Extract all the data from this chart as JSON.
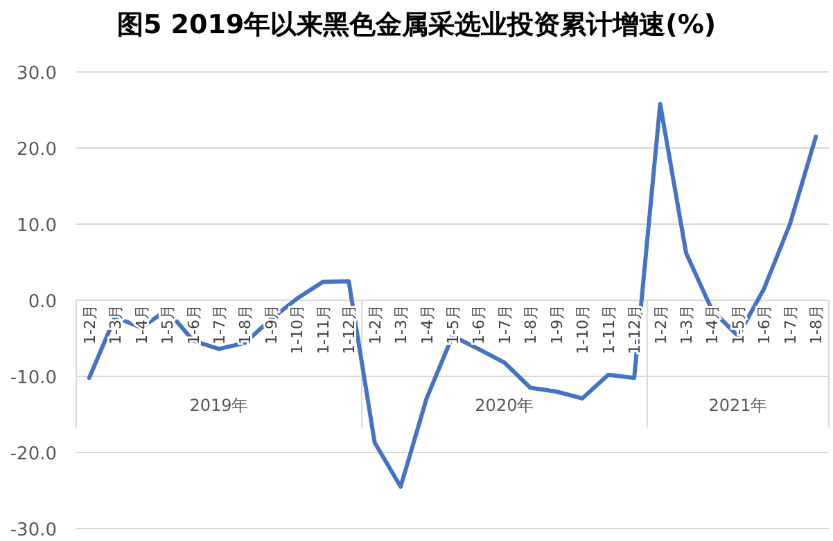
{
  "chart_data": {
    "type": "line",
    "title": "图5 2019年以来黑色金属采选业投资累计增速(%)",
    "categories": [
      "1-2月",
      "1-3月",
      "1-4月",
      "1-5月",
      "1-6月",
      "1-7月",
      "1-8月",
      "1-9月",
      "1-10月",
      "1-11月",
      "1-12月",
      "1-2月",
      "1-3月",
      "1-4月",
      "1-5月",
      "1-6月",
      "1-7月",
      "1-8月",
      "1-9月",
      "1-10月",
      "1-11月",
      "1-12月",
      "1-2月",
      "1-3月",
      "1-4月",
      "1-5月",
      "1-6月",
      "1-7月",
      "1-8月"
    ],
    "series": [
      {
        "color": "#4472c4",
        "values": [
          -10.2,
          -2.2,
          -3.6,
          -1.3,
          -5.3,
          -6.4,
          -5.6,
          -2.5,
          0.2,
          2.4,
          2.5,
          -18.7,
          -24.5,
          -12.9,
          -4.7,
          -6.4,
          -8.2,
          -11.5,
          -12.0,
          -12.9,
          -9.8,
          -10.2,
          25.8,
          6.2,
          -1.3,
          -4.7,
          1.5,
          10.0,
          21.5
        ]
      }
    ],
    "annotations": [
      "2019年",
      "2020年",
      "2021年"
    ],
    "ylim": [
      -30,
      30
    ],
    "yticks": [
      {
        "value": -30,
        "label": "-30.0"
      },
      {
        "value": -20,
        "label": "-20.0"
      },
      {
        "value": -10,
        "label": "-10.0"
      },
      {
        "value": 0,
        "label": "0.0"
      },
      {
        "value": 10,
        "label": "10.0"
      },
      {
        "value": 20,
        "label": "20.0"
      },
      {
        "value": 30,
        "label": "30.0"
      }
    ],
    "grid": "y",
    "marker": "none",
    "line_style": "solid"
  }
}
